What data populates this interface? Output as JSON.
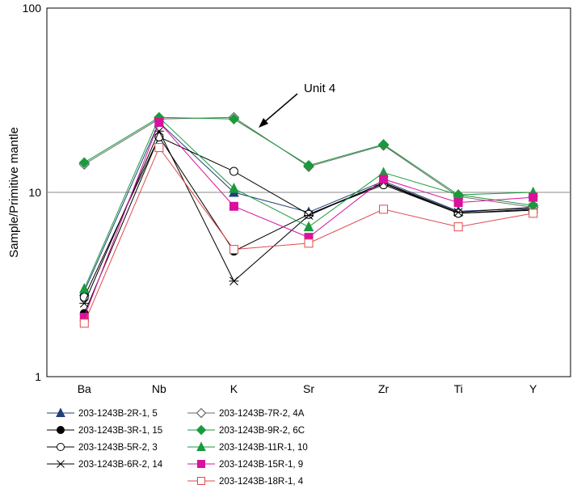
{
  "chart_data": {
    "type": "line",
    "yscale": "log",
    "ylabel": "Sample/Primitive mantle",
    "ylim": [
      1,
      100
    ],
    "yticks": [
      "1",
      "10",
      "100"
    ],
    "categories": [
      "Ba",
      "Nb",
      "K",
      "Sr",
      "Zr",
      "Ti",
      "Y"
    ],
    "grid": "horizontal line at 10",
    "legend_position": "bottom",
    "annotation": {
      "text": "Unit 4",
      "arrow": true
    },
    "series": [
      {
        "name": "203-1243B-2R-1, 5",
        "marker": "triangle",
        "filled": true,
        "color": "#1f3f7a",
        "values": [
          2.9,
          24,
          10,
          7.8,
          11.5,
          7.9,
          8.2
        ]
      },
      {
        "name": "203-1243B-3R-1, 15",
        "marker": "circle",
        "filled": true,
        "color": "#000000",
        "values": [
          2.2,
          20,
          4.8,
          7.6,
          11.2,
          7.7,
          8.0
        ]
      },
      {
        "name": "203-1243B-5R-2, 3",
        "marker": "circle",
        "filled": false,
        "color": "#000000",
        "values": [
          2.7,
          20,
          13,
          7.6,
          11.0,
          7.7,
          8.1
        ]
      },
      {
        "name": "203-1243B-6R-2, 14",
        "marker": "asterisk",
        "filled": false,
        "color": "#000000",
        "values": [
          2.5,
          21.5,
          3.3,
          7.5,
          11.3,
          7.8,
          8.3
        ]
      },
      {
        "name": "203-1243B-7R-2, 4A",
        "marker": "diamond",
        "filled": false,
        "color": "#6a6a6a",
        "values": [
          14.2,
          25,
          25.5,
          13.8,
          18,
          9.5,
          8.3
        ]
      },
      {
        "name": "203-1243B-9R-2, 6C",
        "marker": "diamond",
        "filled": true,
        "color": "#1a9a3c",
        "values": [
          14.5,
          25.5,
          25,
          14,
          18.2,
          9.7,
          8.5
        ]
      },
      {
        "name": "203-1243B-11R-1, 10",
        "marker": "triangle",
        "filled": true,
        "color": "#1a9a3c",
        "values": [
          3.0,
          25.5,
          10.5,
          6.5,
          12.8,
          9.7,
          10.0
        ]
      },
      {
        "name": "203-1243B-15R-1, 9",
        "marker": "square",
        "filled": true,
        "color": "#d9119d",
        "values": [
          2.1,
          24,
          8.4,
          5.7,
          11.8,
          8.8,
          9.4
        ]
      },
      {
        "name": "203-1243B-18R-1, 4",
        "marker": "square",
        "filled": false,
        "color": "#e0494b",
        "values": [
          1.95,
          17.5,
          4.9,
          5.3,
          8.1,
          6.5,
          7.7
        ]
      }
    ]
  }
}
